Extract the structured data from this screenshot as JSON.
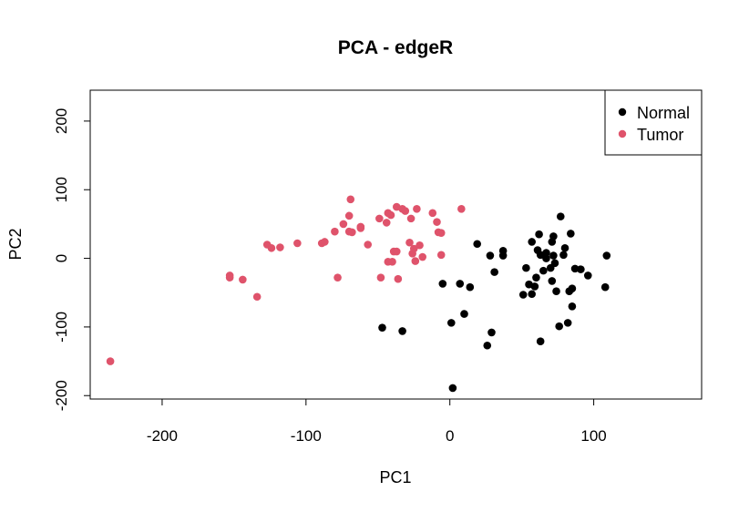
{
  "chart_data": {
    "type": "scatter",
    "title": "PCA - edgeR",
    "xlabel": "PC1",
    "ylabel": "PC2",
    "xlim": [
      -250,
      175
    ],
    "ylim": [
      -205,
      245
    ],
    "xticks": [
      -200,
      -100,
      0,
      100
    ],
    "yticks": [
      -200,
      -100,
      0,
      100,
      200
    ],
    "grid": false,
    "legend_position": "top-right",
    "series": [
      {
        "name": "Normal",
        "color": "#000000",
        "points": [
          [
            -47,
            -101
          ],
          [
            -33,
            -106
          ],
          [
            -5,
            -37
          ],
          [
            1,
            -94
          ],
          [
            2,
            -189
          ],
          [
            7,
            -37
          ],
          [
            10,
            -81
          ],
          [
            14,
            -42
          ],
          [
            19,
            21
          ],
          [
            26,
            -127
          ],
          [
            28,
            4
          ],
          [
            29,
            -108
          ],
          [
            31,
            -20
          ],
          [
            37,
            11
          ],
          [
            37,
            4
          ],
          [
            51,
            -53
          ],
          [
            53,
            -14
          ],
          [
            55,
            -38
          ],
          [
            57,
            -52
          ],
          [
            57,
            24
          ],
          [
            59,
            -41
          ],
          [
            60,
            -28
          ],
          [
            61,
            12
          ],
          [
            62,
            35
          ],
          [
            63,
            5
          ],
          [
            63,
            -121
          ],
          [
            65,
            -18
          ],
          [
            67,
            8
          ],
          [
            67,
            0
          ],
          [
            70,
            -14
          ],
          [
            71,
            24
          ],
          [
            71,
            -33
          ],
          [
            72,
            4
          ],
          [
            72,
            32
          ],
          [
            73,
            -7
          ],
          [
            74,
            -48
          ],
          [
            76,
            -99
          ],
          [
            77,
            61
          ],
          [
            79,
            5
          ],
          [
            80,
            15
          ],
          [
            82,
            -94
          ],
          [
            83,
            -48
          ],
          [
            84,
            36
          ],
          [
            85,
            -70
          ],
          [
            85,
            -44
          ],
          [
            87,
            -15
          ],
          [
            91,
            -16
          ],
          [
            96,
            -25
          ],
          [
            108,
            -42
          ],
          [
            109,
            4
          ]
        ]
      },
      {
        "name": "Tumor",
        "color": "#DF536B",
        "points": [
          [
            -236,
            -150
          ],
          [
            -153,
            -28
          ],
          [
            -153,
            -25
          ],
          [
            -144,
            -31
          ],
          [
            -134,
            -56
          ],
          [
            -127,
            20
          ],
          [
            -124,
            15
          ],
          [
            -118,
            16
          ],
          [
            -106,
            22
          ],
          [
            -89,
            22
          ],
          [
            -87,
            24
          ],
          [
            -80,
            39
          ],
          [
            -78,
            -28
          ],
          [
            -74,
            50
          ],
          [
            -70,
            39
          ],
          [
            -70,
            62
          ],
          [
            -69,
            86
          ],
          [
            -68,
            38
          ],
          [
            -62,
            46
          ],
          [
            -62,
            44
          ],
          [
            -57,
            20
          ],
          [
            -49,
            58
          ],
          [
            -48,
            -28
          ],
          [
            -44,
            52
          ],
          [
            -43,
            66
          ],
          [
            -43,
            -5
          ],
          [
            -41,
            63
          ],
          [
            -40,
            -5
          ],
          [
            -39,
            10
          ],
          [
            -37,
            75
          ],
          [
            -37,
            10
          ],
          [
            -36,
            -30
          ],
          [
            -33,
            72
          ],
          [
            -31,
            69
          ],
          [
            -28,
            23
          ],
          [
            -27,
            58
          ],
          [
            -26,
            7
          ],
          [
            -25,
            14
          ],
          [
            -24,
            -4
          ],
          [
            -23,
            72
          ],
          [
            -21,
            19
          ],
          [
            -19,
            2
          ],
          [
            -12,
            66
          ],
          [
            -9,
            53
          ],
          [
            -8,
            38
          ],
          [
            -6,
            37
          ],
          [
            -6,
            5
          ],
          [
            8,
            72
          ]
        ]
      }
    ]
  }
}
